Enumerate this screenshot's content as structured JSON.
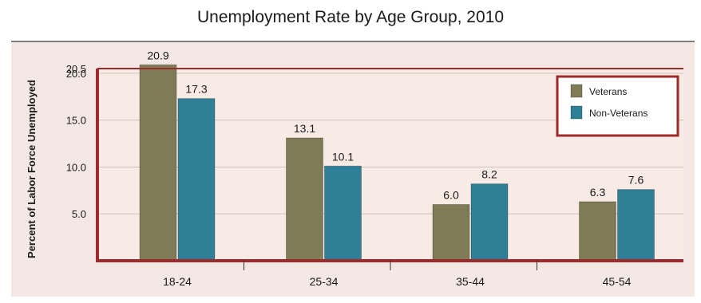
{
  "chart_data": {
    "type": "bar",
    "title": "Unemployment Rate by Age Group, 2010",
    "xlabel": "",
    "ylabel": "Percent of Labor Force Unemployed",
    "categories": [
      "18-24",
      "25-34",
      "35-44",
      "45-54"
    ],
    "series": [
      {
        "name": "Veterans",
        "values": [
          20.9,
          13.1,
          6.0,
          6.3
        ],
        "labels": [
          "20.9",
          "13.1",
          "6.0",
          "6.3"
        ]
      },
      {
        "name": "Non-Veterans",
        "values": [
          17.3,
          10.1,
          8.2,
          7.6
        ],
        "labels": [
          "17.3",
          "10.1",
          "8.2",
          "7.6"
        ]
      }
    ],
    "ylim": [
      0,
      20.5
    ],
    "yticks": [
      5.0,
      10.0,
      15.0,
      20.0,
      20.5
    ],
    "ytick_labels": [
      "5.0",
      "10.0",
      "15.0",
      "20.0",
      "20.5"
    ],
    "grid": true,
    "legend_position": "top-right",
    "colors": {
      "Veterans": "#7f7b57",
      "Non-Veterans": "#2f8096",
      "frame": "#9e2a2b",
      "plot_background": "#f8ebe6",
      "outer_background": "#f3e8e3",
      "gridline": "#cfc2bc"
    }
  }
}
